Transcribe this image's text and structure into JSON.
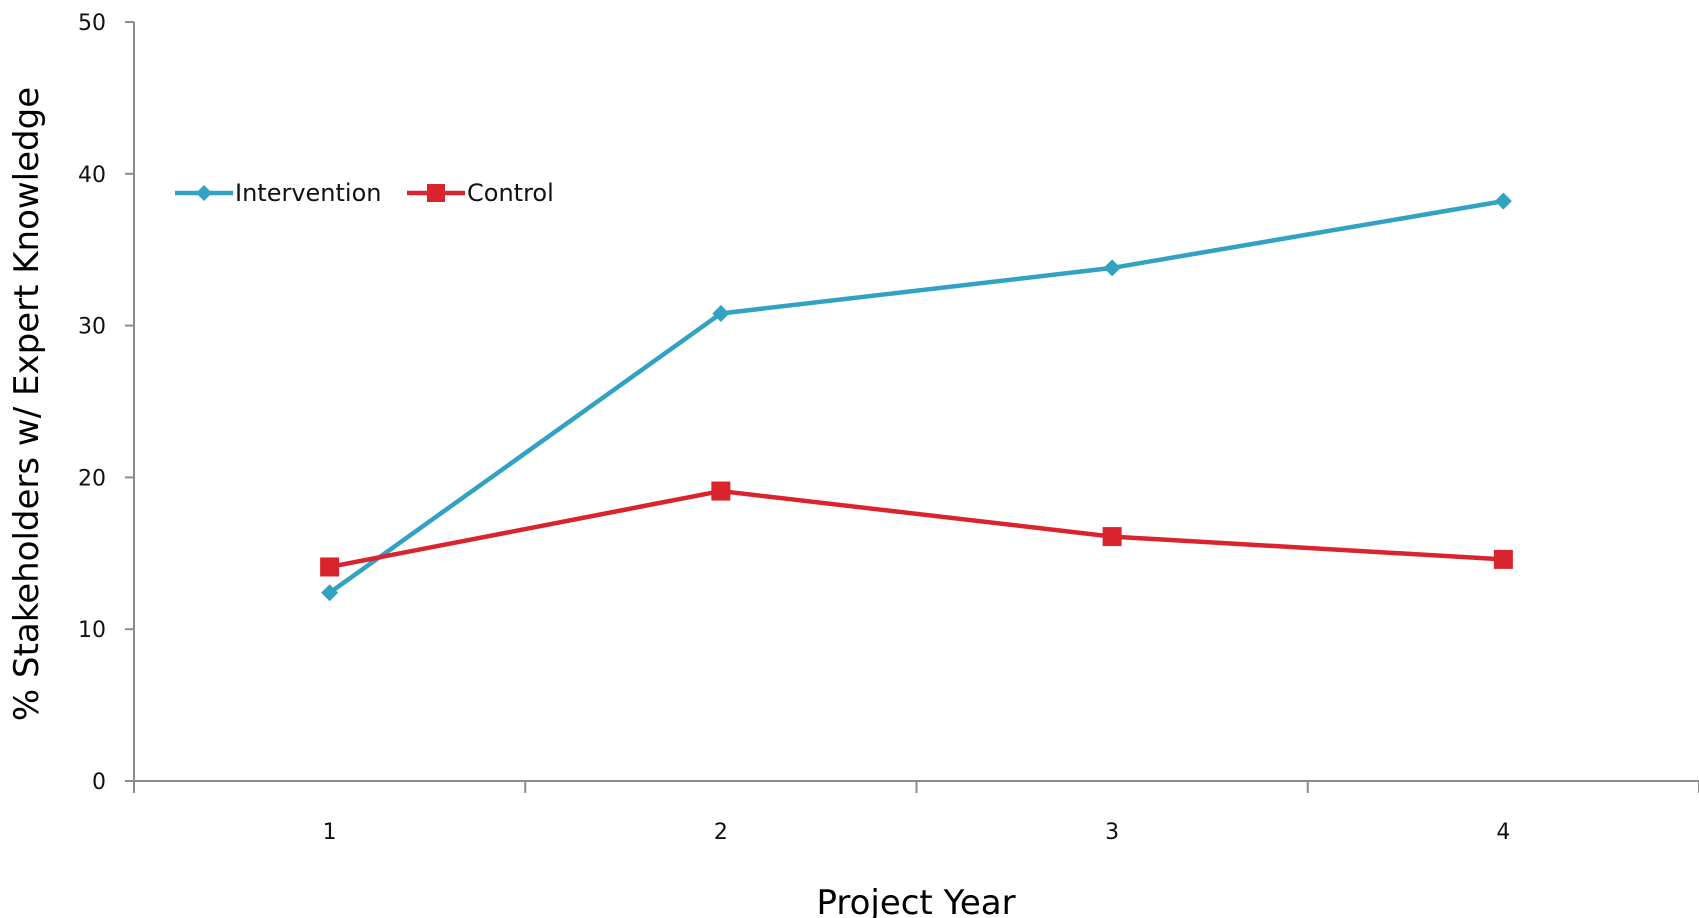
{
  "chart_data": {
    "type": "line",
    "categories": [
      "1",
      "2",
      "3",
      "4"
    ],
    "series": [
      {
        "name": "Intervention",
        "values": [
          12.4,
          30.8,
          33.8,
          38.2
        ],
        "color": "#31A2C1",
        "marker": "diamond"
      },
      {
        "name": "Control",
        "values": [
          14.1,
          19.1,
          16.1,
          14.6
        ],
        "color": "#D9232D",
        "marker": "square"
      }
    ],
    "xlabel": "Project Year",
    "ylabel": "% Stakeholders w/ Expert Knowledge",
    "ylim": [
      0,
      50
    ],
    "yticks": [
      "0",
      "10",
      "20",
      "30",
      "40",
      "50"
    ],
    "grid": false,
    "legend_position": "top-left"
  }
}
